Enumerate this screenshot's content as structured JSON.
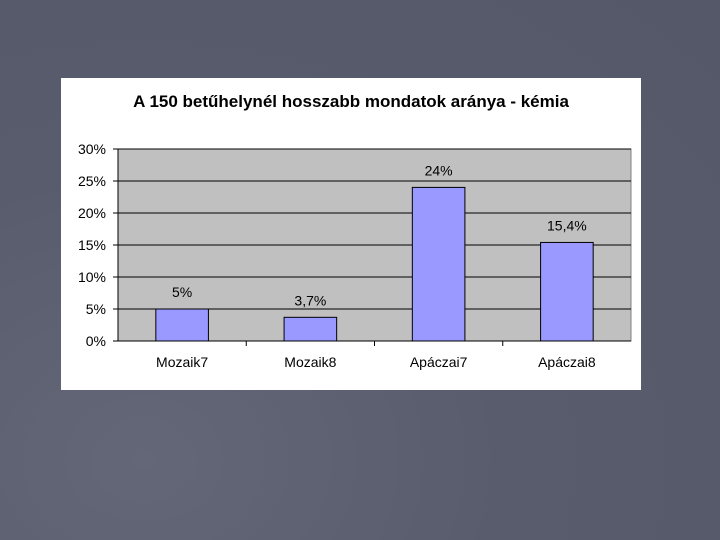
{
  "chart_data": {
    "type": "bar",
    "title": "A 150 betűhelynél hosszabb mondatok aránya - kémia",
    "xlabel": "",
    "ylabel": "",
    "categories": [
      "Mozaik7",
      "Mozaik8",
      "Apáczai7",
      "Apáczai8"
    ],
    "values": [
      5,
      3.7,
      24,
      15.4
    ],
    "data_labels": [
      "5%",
      "3,7%",
      "24%",
      "15,4%"
    ],
    "ylim": [
      0,
      30
    ],
    "yticks": [
      0,
      5,
      10,
      15,
      20,
      25,
      30
    ],
    "ytick_labels": [
      "0%",
      "5%",
      "10%",
      "15%",
      "20%",
      "25%",
      "30%"
    ],
    "grid": true,
    "legend": "none",
    "colors": {
      "bar_fill": "#9999ff",
      "plot_area": "#c0c0c0",
      "gridline": "#000000",
      "slide_background": "#585c6c"
    }
  }
}
